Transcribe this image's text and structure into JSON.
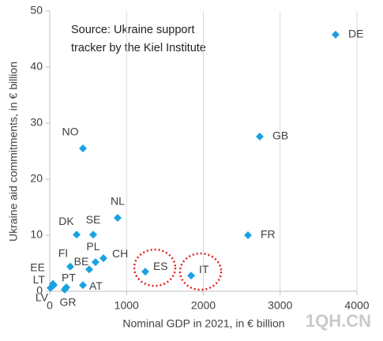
{
  "chart_data": {
    "type": "scatter",
    "annotation": [
      "Source: Ukraine support",
      "tracker by the Kiel Institute"
    ],
    "x_label": "Nominal GDP in 2021, in € billion",
    "y_label": "Ukraine aid commitments, in € billion",
    "watermark": "1QH.CN",
    "color": "#1ba1e2",
    "highlight_color": "#e02020",
    "highlight": [
      "ES",
      "IT"
    ],
    "grid": "x",
    "xlim": [
      0,
      4000
    ],
    "xticks": [
      0,
      1000,
      2000,
      3000,
      4000
    ],
    "ylim": [
      0,
      50
    ],
    "yticks": [
      0,
      10,
      20,
      30,
      40,
      50
    ],
    "labels": [
      "DE",
      "GB",
      "NO",
      "NL",
      "DK",
      "SE",
      "FR",
      "FI",
      "BE",
      "PL",
      "CH",
      "ES",
      "IT",
      "EE",
      "LT",
      "LV",
      "PT",
      "AT",
      "GR"
    ],
    "x": [
      3722,
      2735,
      432,
      884,
      350,
      566,
      2581,
      267,
      514,
      596,
      699,
      1244,
      1841,
      41,
      51,
      10,
      216,
      432,
      195
    ],
    "y": [
      45.8,
      27.6,
      25.5,
      13.1,
      10.1,
      10.1,
      10.0,
      4.4,
      3.9,
      5.2,
      5.9,
      3.5,
      2.8,
      1.3,
      1.1,
      0.6,
      0.7,
      1.1,
      0.3
    ]
  }
}
